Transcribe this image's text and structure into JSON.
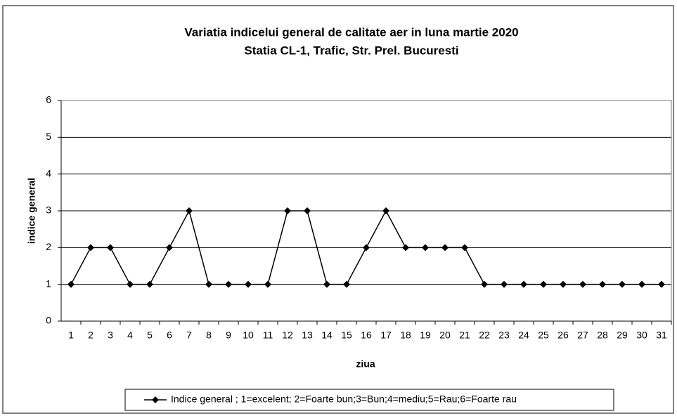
{
  "chart_data": {
    "type": "line",
    "title": "Variatia indicelui general de calitate aer in luna martie 2020",
    "subtitle": "Statia CL-1, Trafic, Str. Prel. Bucuresti",
    "x_label": "ziua",
    "y_label": "indice general",
    "categories": [
      "1",
      "2",
      "3",
      "4",
      "5",
      "6",
      "7",
      "8",
      "9",
      "10",
      "11",
      "12",
      "13",
      "14",
      "15",
      "16",
      "17",
      "18",
      "19",
      "20",
      "21",
      "22",
      "23",
      "24",
      "25",
      "26",
      "27",
      "28",
      "29",
      "30",
      "31"
    ],
    "series": [
      {
        "name": "Indice  general ; 1=excelent; 2=Foarte bun;3=Bun;4=mediu;5=Rau;6=Foarte rau",
        "color": "#000000",
        "values": [
          1,
          2,
          2,
          1,
          1,
          2,
          3,
          1,
          1,
          1,
          1,
          3,
          3,
          1,
          1,
          2,
          3,
          2,
          2,
          2,
          2,
          1,
          1,
          1,
          1,
          1,
          1,
          1,
          1,
          1,
          1
        ]
      }
    ],
    "ylim": [
      0,
      6
    ],
    "yticks": [
      0,
      1,
      2,
      3,
      4,
      5,
      6
    ],
    "grid": true,
    "legend": "bottom"
  }
}
